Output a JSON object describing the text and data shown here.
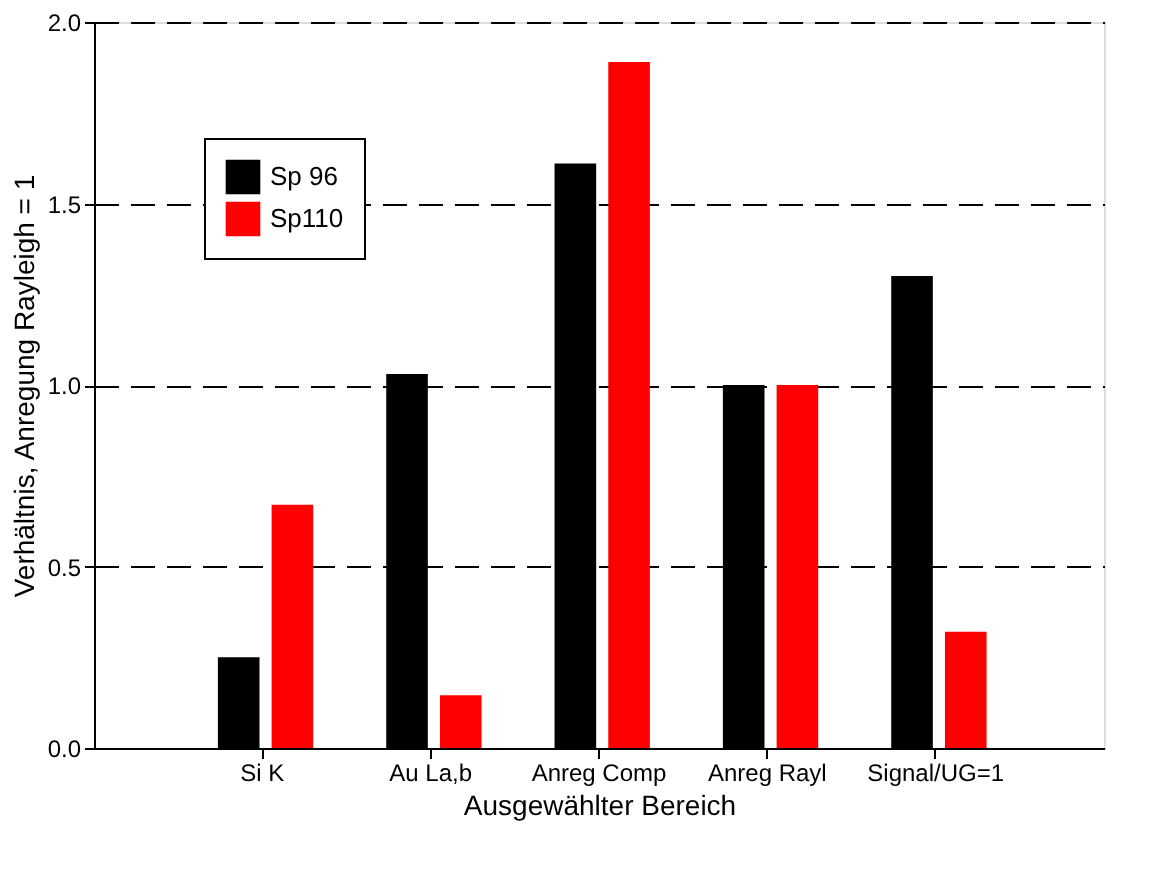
{
  "chart_data": {
    "type": "bar",
    "xlabel": "Ausgewählter Bereich",
    "ylabel": "Verhältnis, Anregung Rayleigh = 1",
    "categories": [
      "Si K",
      "Au La,b",
      "Anreg Comp",
      "Anreg Rayl",
      "Signal/UG=1"
    ],
    "series": [
      {
        "name": "Sp 96",
        "color": "#000000",
        "values": [
          0.25,
          1.03,
          1.61,
          1.0,
          1.3
        ]
      },
      {
        "name": "Sp110",
        "color": "#ff0000",
        "values": [
          0.67,
          0.145,
          1.89,
          1.0,
          0.32
        ]
      }
    ],
    "ylim": [
      0,
      2.0
    ],
    "yticks": [
      {
        "value": 0,
        "label": "0.0"
      },
      {
        "value": 0.5,
        "label": "0.5"
      },
      {
        "value": 1.0,
        "label": "1.0"
      },
      {
        "value": 1.5,
        "label": "1.5"
      },
      {
        "value": 2.0,
        "label": "2.0"
      }
    ],
    "grid": "y",
    "line_style": "dashed",
    "legend": "top left"
  }
}
